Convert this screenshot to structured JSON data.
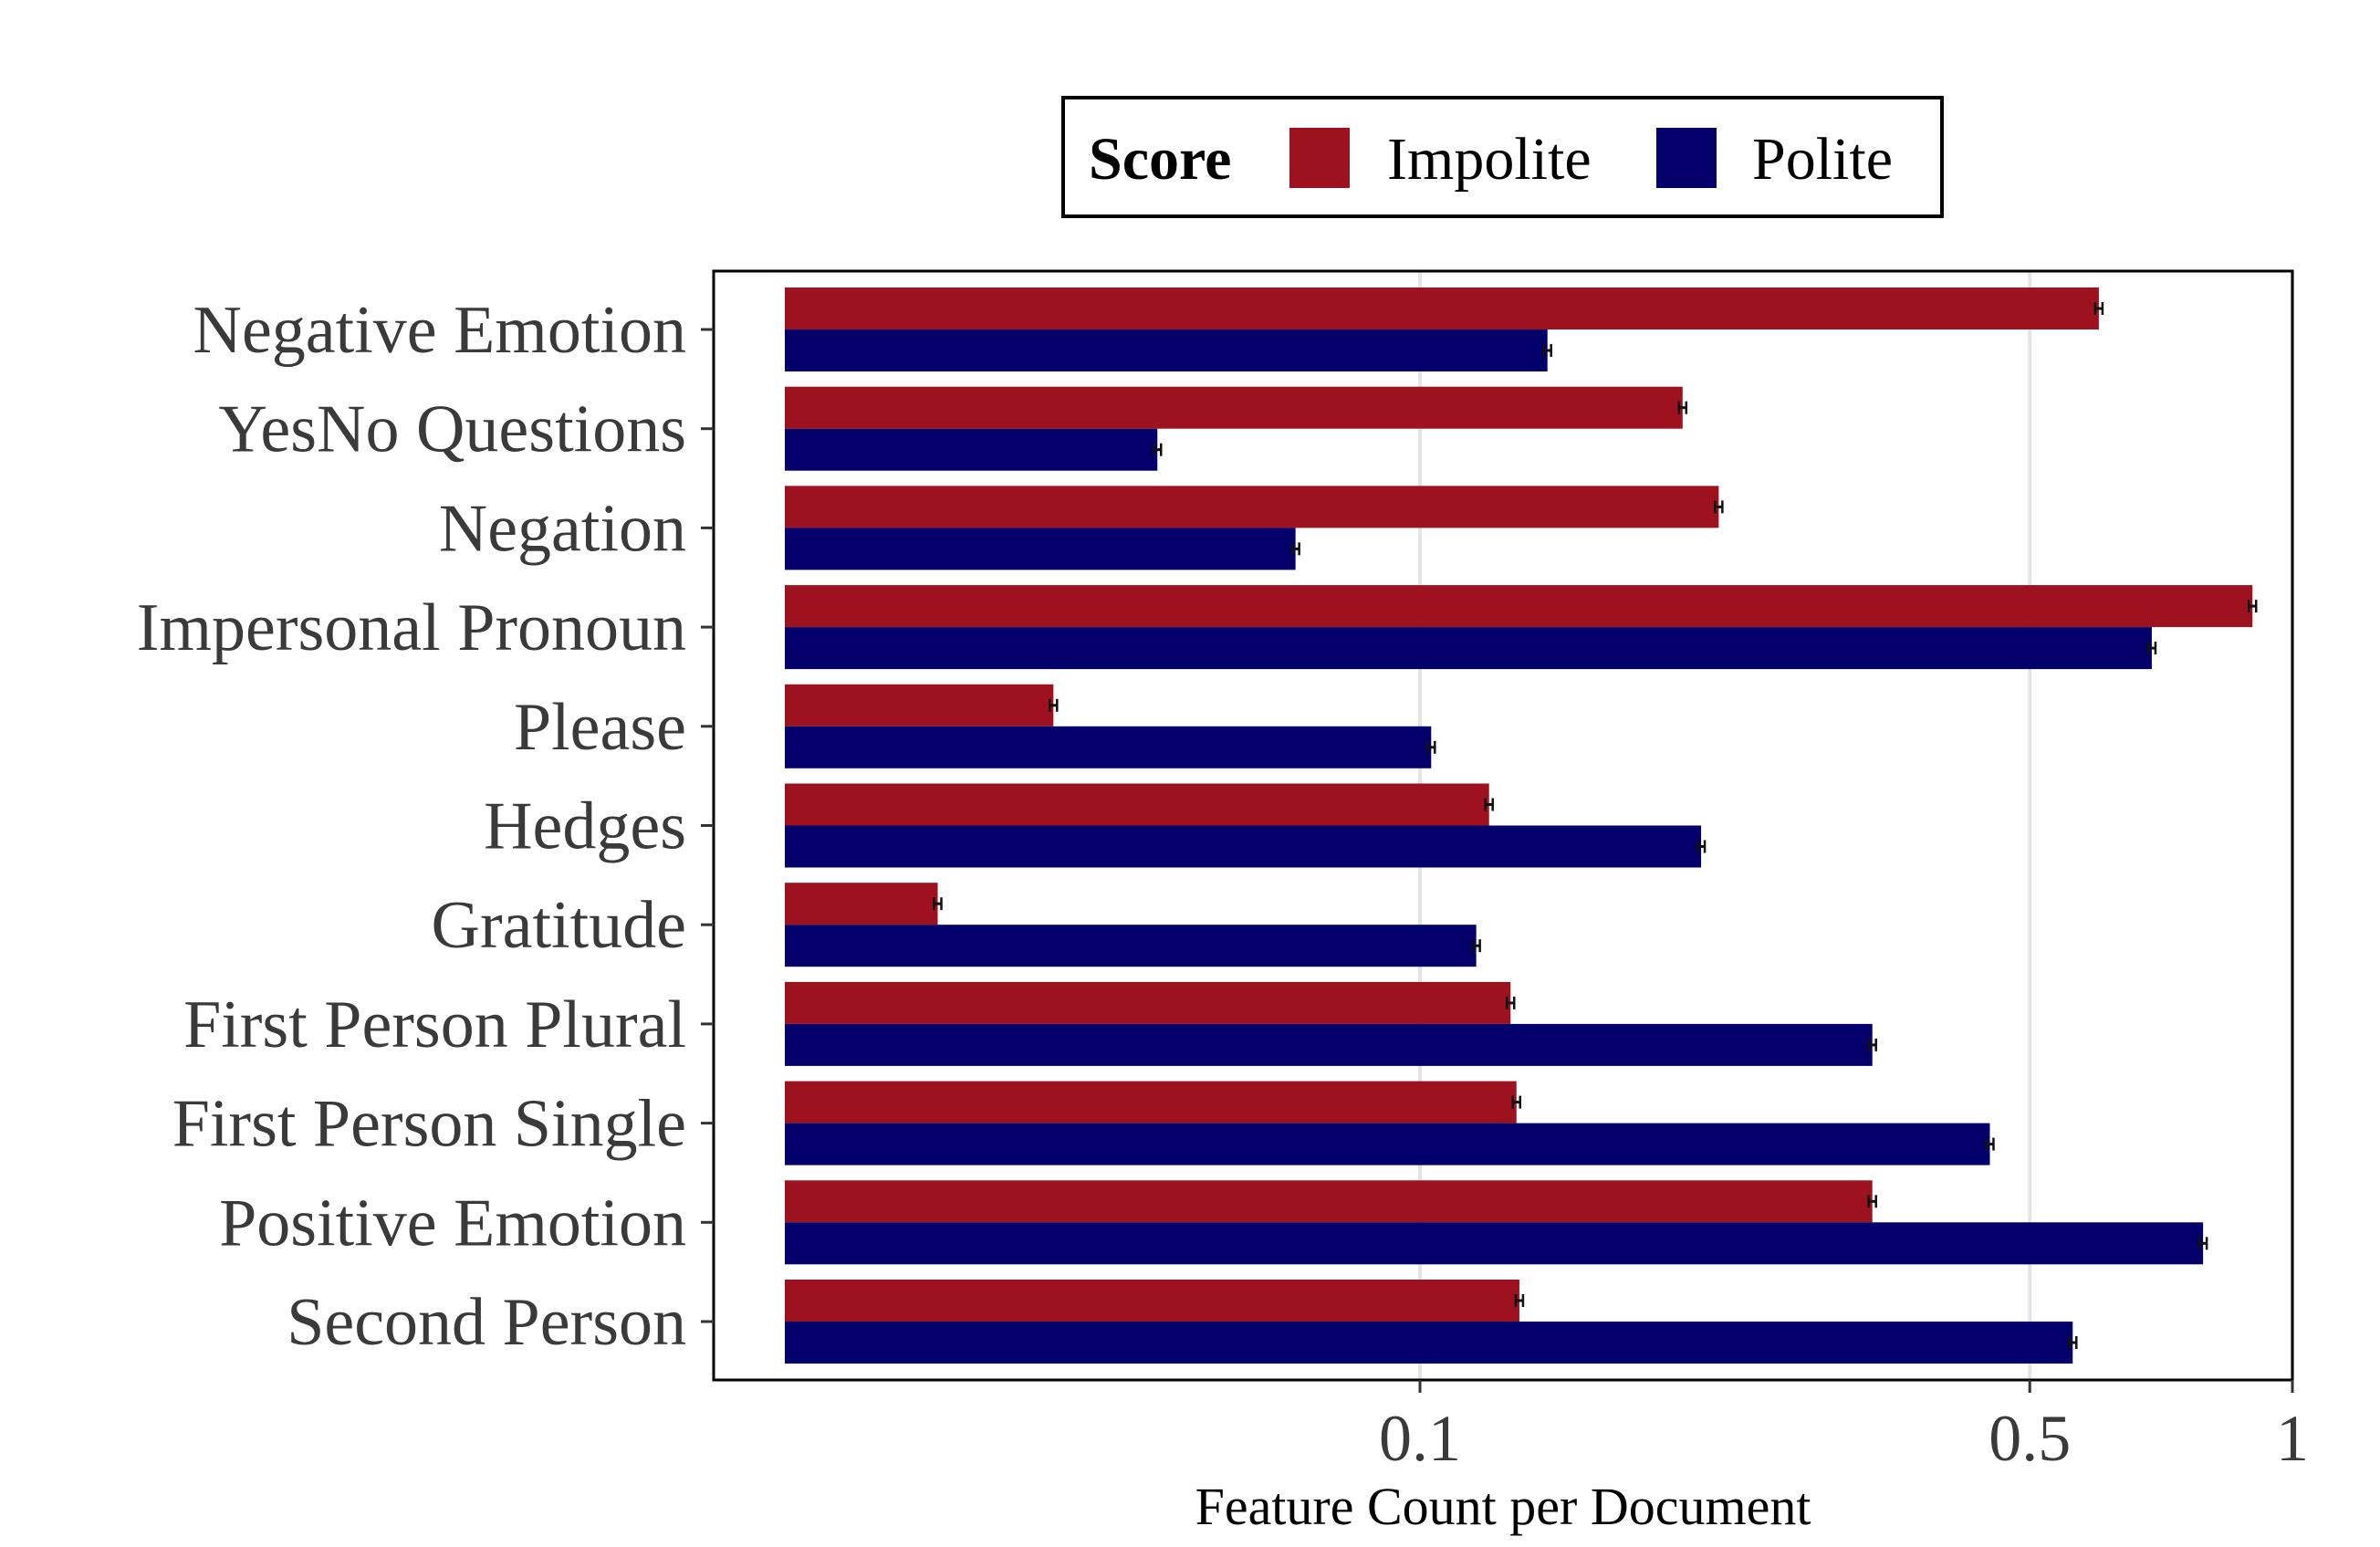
{
  "chart_data": {
    "type": "bar",
    "orientation": "horizontal",
    "xscale": "log",
    "xlabel": "Feature Count per Document",
    "ylabel": "",
    "xlim": [
      0.0155,
      1.0
    ],
    "xticks": [
      {
        "value": 0.1,
        "label": "0.1"
      },
      {
        "value": 0.5,
        "label": "0.5"
      },
      {
        "value": 1.0,
        "label": "1"
      }
    ],
    "grid": "vertical major lines",
    "legend": {
      "title": "Score",
      "position": "top"
    },
    "categories": [
      "Negative Emotion",
      "YesNo Questions",
      "Negation",
      "Impersonal Pronoun",
      "Please",
      "Hedges",
      "Gratitude",
      "First Person Plural",
      "First Person Single",
      "Positive Emotion",
      "Second Person"
    ],
    "series": [
      {
        "name": "Impolite",
        "color": "#9e111e",
        "values": [
          0.6,
          0.2,
          0.22,
          0.9,
          0.038,
          0.12,
          0.028,
          0.127,
          0.129,
          0.33,
          0.13
        ]
      },
      {
        "name": "Polite",
        "color": "#03006b",
        "values": [
          0.14,
          0.05,
          0.072,
          0.69,
          0.103,
          0.21,
          0.116,
          0.33,
          0.45,
          0.79,
          0.56
        ]
      }
    ],
    "error_bars": true
  }
}
